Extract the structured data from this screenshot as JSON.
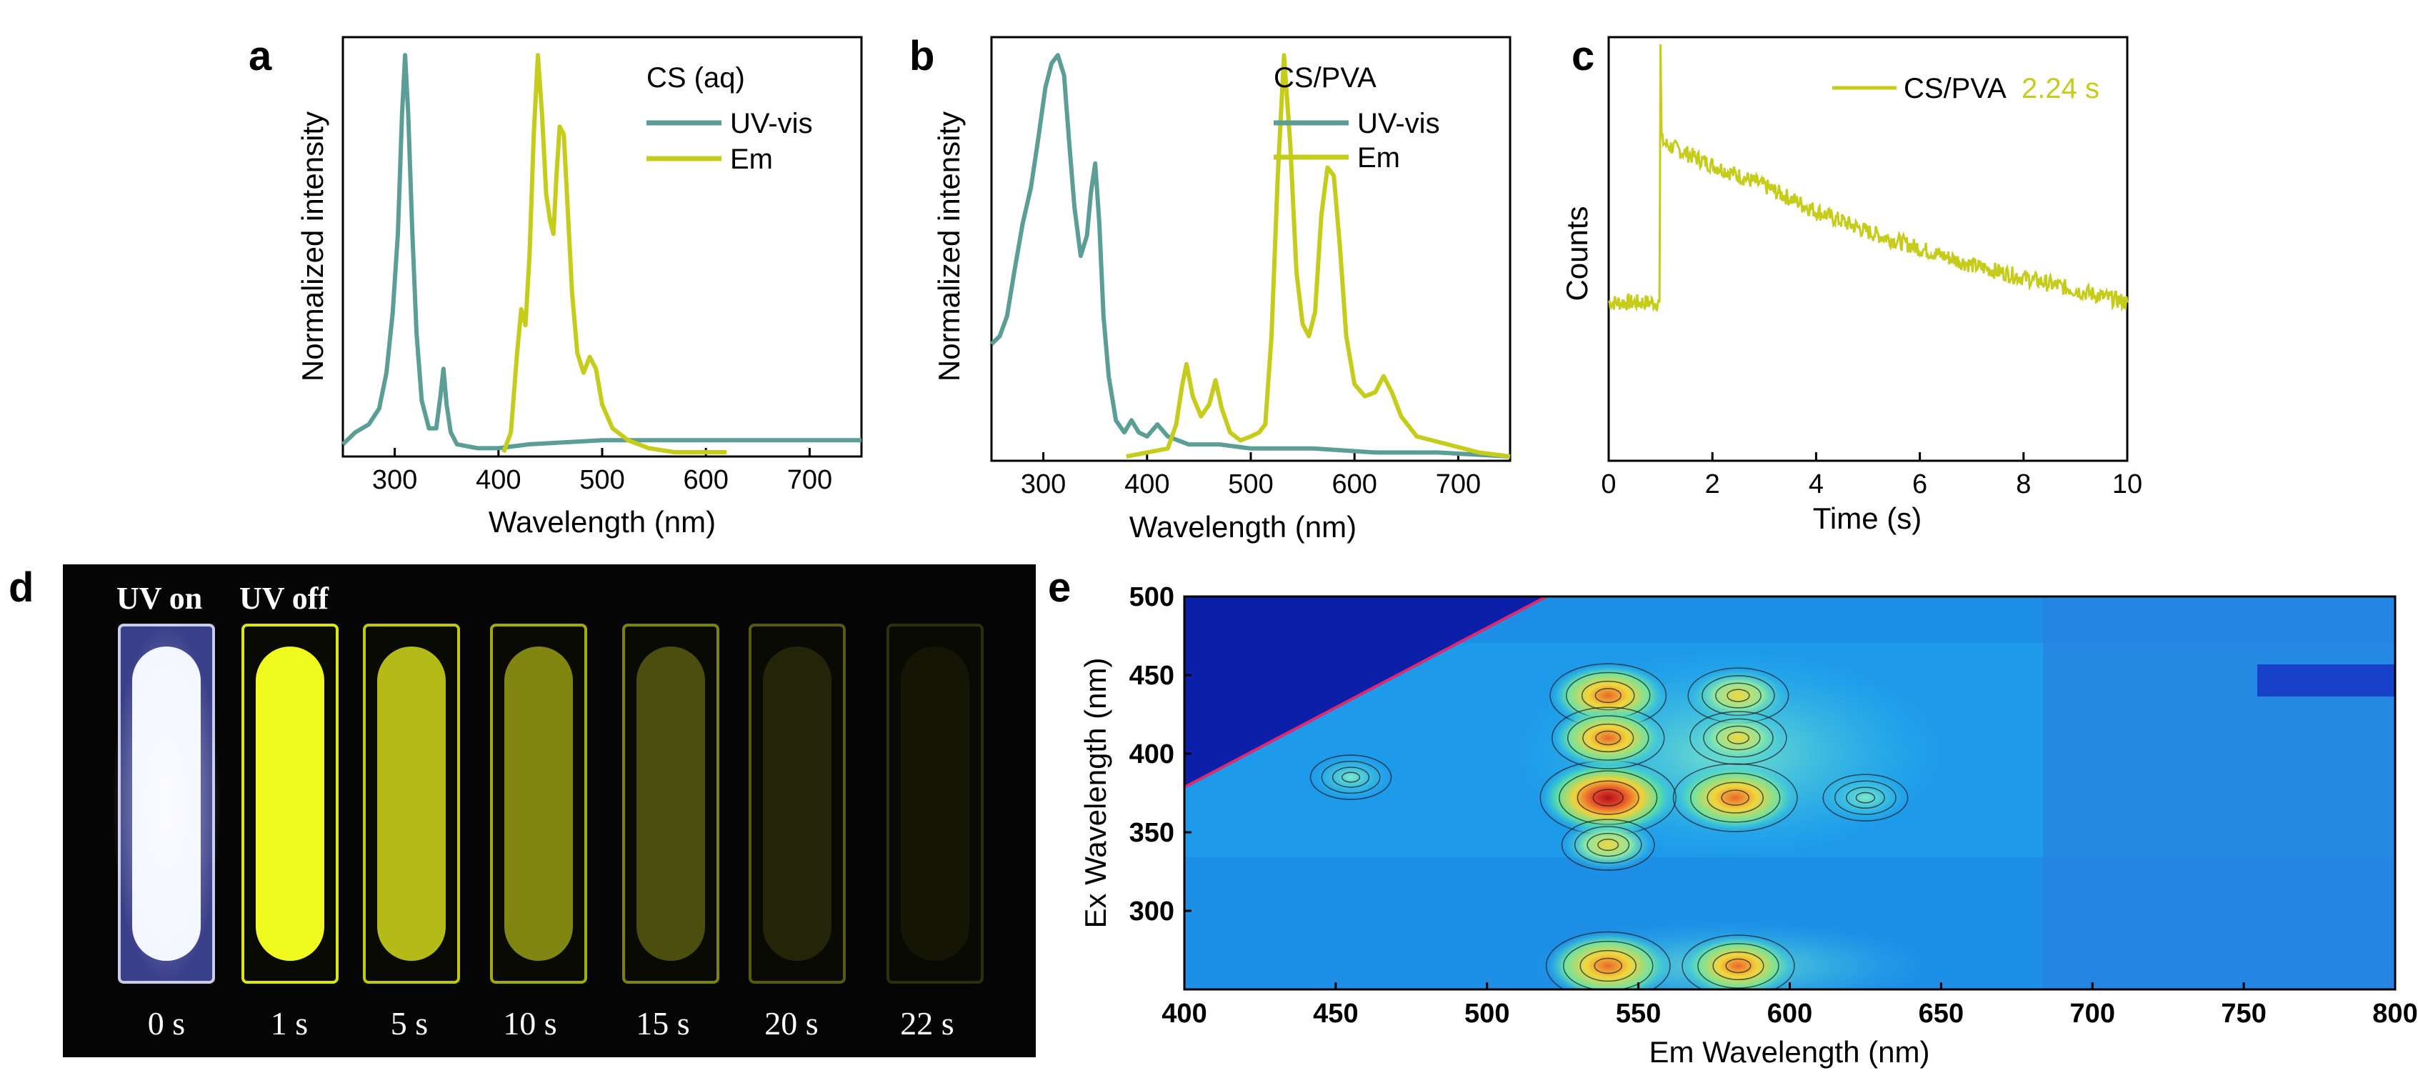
{
  "colors": {
    "uvvis": "#5a9e96",
    "em": "#c6cc1a",
    "decay": "#c6cc1a",
    "photo_bg": "#050505",
    "map_bg": "#1e8fe6",
    "map_mask": "#0b1fa8"
  },
  "panels": {
    "a": "a",
    "b": "b",
    "c": "c",
    "d": "d",
    "e": "e"
  },
  "chart_data": [
    {
      "id": "a",
      "type": "line",
      "title": "CS (aq)",
      "xlabel": "Wavelength (nm)",
      "ylabel": "Normalized intensity",
      "xlim": [
        250,
        750
      ],
      "ylim": [
        0,
        1.02
      ],
      "xticks": [
        300,
        400,
        500,
        600,
        700
      ],
      "legend_position": "top-right",
      "series": [
        {
          "name": "UV-vis",
          "x": [
            250,
            262,
            275,
            285,
            292,
            298,
            303,
            307,
            310,
            313,
            317,
            321,
            326,
            333,
            340,
            344,
            347,
            350,
            354,
            360,
            380,
            400,
            430,
            500,
            600,
            750
          ],
          "y": [
            0.02,
            0.05,
            0.07,
            0.11,
            0.2,
            0.35,
            0.55,
            0.85,
            1.0,
            0.85,
            0.55,
            0.3,
            0.13,
            0.06,
            0.06,
            0.14,
            0.21,
            0.12,
            0.05,
            0.02,
            0.01,
            0.01,
            0.02,
            0.03,
            0.03,
            0.03
          ]
        },
        {
          "name": "Em",
          "x": [
            405,
            412,
            418,
            422,
            426,
            430,
            434,
            438,
            442,
            446,
            450,
            453,
            456,
            459,
            463,
            467,
            471,
            476,
            482,
            488,
            494,
            500,
            510,
            525,
            545,
            570,
            620
          ],
          "y": [
            0.0,
            0.05,
            0.25,
            0.36,
            0.32,
            0.5,
            0.8,
            1.0,
            0.85,
            0.65,
            0.58,
            0.55,
            0.7,
            0.82,
            0.8,
            0.6,
            0.4,
            0.25,
            0.2,
            0.24,
            0.21,
            0.12,
            0.06,
            0.03,
            0.01,
            0.0,
            0.0
          ]
        }
      ]
    },
    {
      "id": "b",
      "type": "line",
      "title": "CS/PVA",
      "xlabel": "Wavelength (nm)",
      "ylabel": "Normalized intensity",
      "xlim": [
        250,
        750
      ],
      "ylim": [
        0,
        1.02
      ],
      "xticks": [
        300,
        400,
        500,
        600,
        700
      ],
      "legend_position": "top-right",
      "series": [
        {
          "name": "UV-vis",
          "x": [
            250,
            258,
            265,
            272,
            280,
            288,
            295,
            302,
            308,
            314,
            320,
            325,
            330,
            336,
            342,
            346,
            350,
            354,
            358,
            363,
            370,
            378,
            385,
            392,
            400,
            410,
            420,
            440,
            470,
            500,
            560,
            620,
            680,
            750
          ],
          "y": [
            0.28,
            0.3,
            0.35,
            0.46,
            0.58,
            0.67,
            0.79,
            0.92,
            0.98,
            1.0,
            0.95,
            0.78,
            0.62,
            0.5,
            0.55,
            0.66,
            0.73,
            0.58,
            0.35,
            0.2,
            0.09,
            0.06,
            0.09,
            0.06,
            0.05,
            0.08,
            0.05,
            0.03,
            0.03,
            0.02,
            0.02,
            0.01,
            0.01,
            0.0
          ]
        },
        {
          "name": "Em",
          "x": [
            380,
            420,
            428,
            434,
            438,
            444,
            452,
            460,
            466,
            472,
            480,
            490,
            500,
            508,
            514,
            520,
            526,
            532,
            538,
            544,
            550,
            556,
            562,
            568,
            574,
            580,
            586,
            592,
            600,
            610,
            620,
            628,
            636,
            645,
            660,
            690,
            720,
            750
          ],
          "y": [
            0.0,
            0.02,
            0.08,
            0.18,
            0.23,
            0.15,
            0.1,
            0.13,
            0.19,
            0.12,
            0.06,
            0.04,
            0.05,
            0.06,
            0.08,
            0.3,
            0.7,
            1.0,
            0.78,
            0.46,
            0.33,
            0.3,
            0.36,
            0.6,
            0.72,
            0.7,
            0.52,
            0.3,
            0.18,
            0.15,
            0.16,
            0.2,
            0.16,
            0.1,
            0.05,
            0.03,
            0.01,
            0.0
          ]
        }
      ]
    },
    {
      "id": "c",
      "type": "line",
      "xlabel": "Time (s)",
      "ylabel": "Counts",
      "xlim": [
        0,
        10
      ],
      "xticks": [
        0,
        2,
        4,
        6,
        8,
        10
      ],
      "legend_position": "top-right",
      "series": [
        {
          "name": "CS/PVA",
          "lifetime": "2.24 s",
          "x": [
            0,
            0.5,
            0.98,
            1.0,
            1.02,
            1.1,
            2,
            3,
            4,
            5,
            6,
            7,
            8,
            9,
            10
          ],
          "y": [
            0.38,
            0.38,
            0.38,
            1.0,
            0.77,
            0.76,
            0.71,
            0.66,
            0.6,
            0.55,
            0.51,
            0.47,
            0.44,
            0.41,
            0.38
          ]
        }
      ]
    },
    {
      "id": "e",
      "type": "heatmap",
      "xlabel": "Em Wavelength (nm)",
      "ylabel": "Ex Wavelength (nm)",
      "xlim": [
        400,
        800
      ],
      "ylim": [
        250,
        500
      ],
      "xticks": [
        400,
        450,
        500,
        550,
        600,
        650,
        700,
        750,
        800
      ],
      "yticks": [
        300,
        350,
        400,
        450,
        500
      ],
      "peaks": [
        {
          "em": 540,
          "ex": 372,
          "intensity": 1.0
        },
        {
          "em": 582,
          "ex": 372,
          "intensity": 0.85
        },
        {
          "em": 540,
          "ex": 265,
          "intensity": 0.85
        },
        {
          "em": 583,
          "ex": 265,
          "intensity": 0.7
        },
        {
          "em": 540,
          "ex": 437,
          "intensity": 0.75
        },
        {
          "em": 583,
          "ex": 437,
          "intensity": 0.55
        },
        {
          "em": 540,
          "ex": 410,
          "intensity": 0.7
        },
        {
          "em": 583,
          "ex": 410,
          "intensity": 0.5
        },
        {
          "em": 625,
          "ex": 372,
          "intensity": 0.35
        },
        {
          "em": 540,
          "ex": 342,
          "intensity": 0.45
        },
        {
          "em": 455,
          "ex": 385,
          "intensity": 0.3
        }
      ]
    }
  ],
  "photo": {
    "header": [
      "UV on",
      "UV off"
    ],
    "labels": [
      "0 s",
      "1 s",
      "5 s",
      "10 s",
      "15 s",
      "20 s",
      "22 s"
    ],
    "brightness": [
      1.0,
      1.0,
      0.85,
      0.7,
      0.5,
      0.3,
      0.08
    ]
  }
}
